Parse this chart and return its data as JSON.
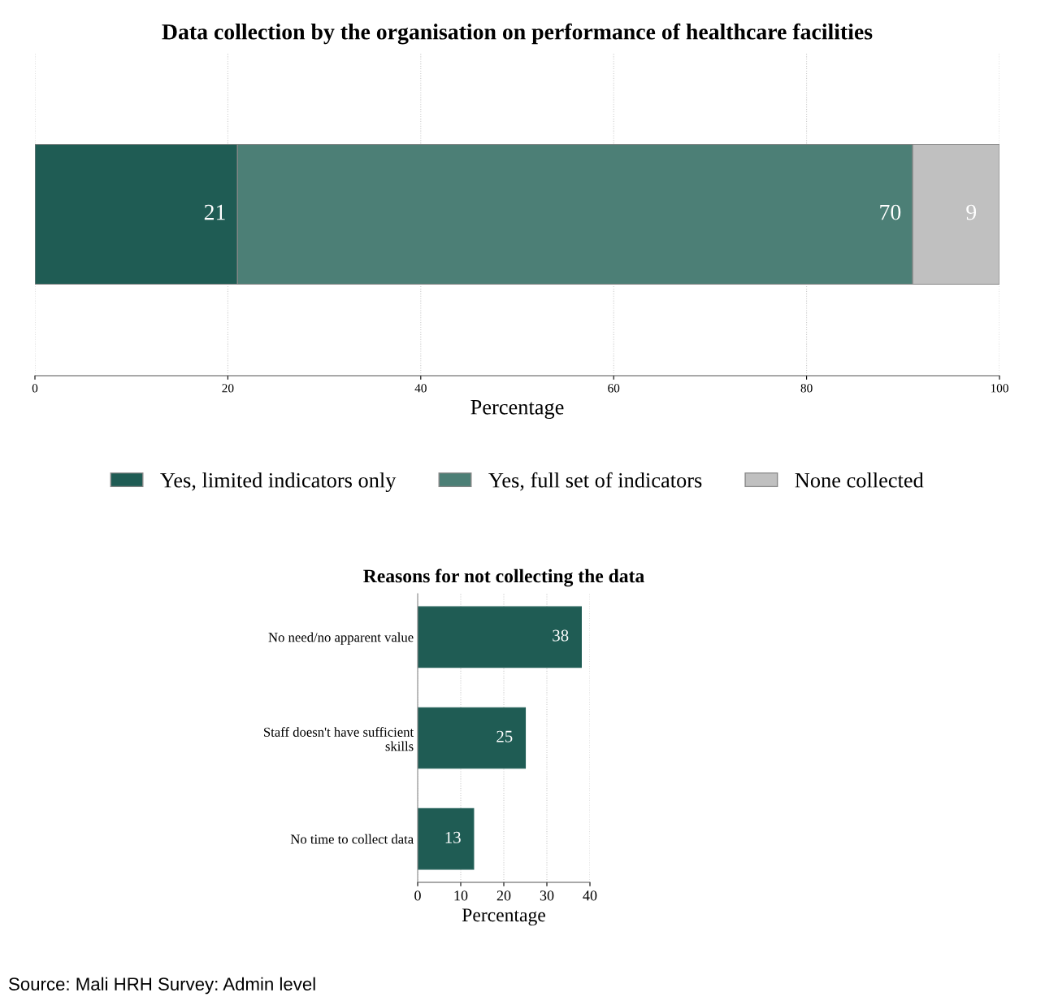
{
  "chart_data": [
    {
      "type": "bar",
      "title": "Data collection by the organisation on performance of healthcare facilities",
      "orientation": "horizontal",
      "stacked": true,
      "categories": [
        null
      ],
      "series": [
        {
          "name": "Yes, limited indicators only",
          "color": "#1f5c54",
          "values": [
            21
          ]
        },
        {
          "name": "Yes, full set of indicators",
          "color": "#4c7f76",
          "values": [
            70
          ]
        },
        {
          "name": "None collected",
          "color": "#c0c0c0",
          "values": [
            9
          ]
        }
      ],
      "xlim": [
        0,
        100
      ],
      "xticks": [
        0,
        20,
        40,
        60,
        80,
        100
      ],
      "xlabel": "Percentage",
      "grid": "x",
      "legend": "bottom",
      "data_labels": true
    },
    {
      "type": "bar",
      "title": "Reasons for not collecting the data",
      "orientation": "horizontal",
      "categories": [
        "No need/no apparent value",
        "Staff doesn't have sufficient\nskills",
        "No time to collect data"
      ],
      "values": [
        38,
        25,
        13
      ],
      "color": "#1f5c54",
      "xlim": [
        0,
        40
      ],
      "xticks": [
        0,
        10,
        20,
        30,
        40
      ],
      "xlabel": "Percentage",
      "grid": "x",
      "data_labels": true,
      "annotations": [
        "Source: Mali HRH Survey: Admin level"
      ]
    }
  ]
}
